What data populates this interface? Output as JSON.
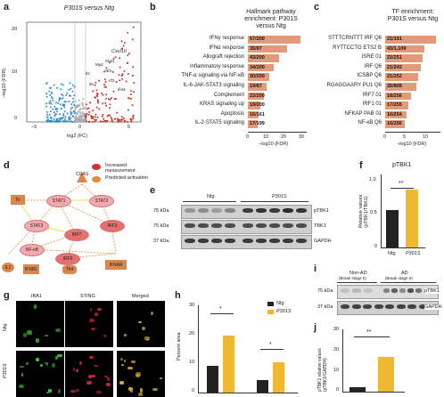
{
  "panels": {
    "a": {
      "letter": "a",
      "title": "P301S versus Ntg",
      "xlabel": "log2 (FC)",
      "ylabel": "−log10 (FDR)",
      "xticks": [
        "−5",
        "0",
        "5"
      ],
      "yticks": [
        "0",
        "10",
        "20"
      ],
      "gene_label": "Cxcl10",
      "small_labels": [
        "Il4",
        "Il6",
        "Myd",
        "Nf4",
        "Ifi44",
        "Stat1",
        "Irf1"
      ]
    },
    "b": {
      "letter": "b",
      "title": "Hallmark pathway enrichment: P301S versus Ntg",
      "xlabel": "−log10 (FDR)",
      "xticks": [
        "0",
        "10",
        "20",
        "30"
      ],
      "rows": [
        {
          "label": "IFNγ response",
          "value": "57/200",
          "score": 27
        },
        {
          "label": "IFNα response",
          "value": "35/97",
          "score": 20
        },
        {
          "label": "Allograft rejection",
          "value": "43/200",
          "score": 16
        },
        {
          "label": "Inflammatory response",
          "value": "34/200",
          "score": 13
        },
        {
          "label": "TNF-α signaling via NF-κB",
          "value": "30/200",
          "score": 11
        },
        {
          "label": "IL-6-JAK-STAT3 signaling",
          "value": "19/87",
          "score": 9.5
        },
        {
          "label": "Complement",
          "value": "22/200",
          "score": 8
        },
        {
          "label": "KRAS signaling up",
          "value": "19/200",
          "score": 6.5
        },
        {
          "label": "Apoptosis",
          "value": "16/161",
          "score": 5.5
        },
        {
          "label": "IL-2-STAT5 signaling",
          "value": "17/199",
          "score": 5
        }
      ]
    },
    "c": {
      "letter": "c",
      "title": "TF enrichment: P301S versus Ntg",
      "xlabel": "−log10 (FDR)",
      "xticks": [
        "0",
        "5",
        "10"
      ],
      "rows": [
        {
          "label": "STTTCRNTTT IRF Q6",
          "value": "21/191",
          "score": 13
        },
        {
          "label": "RYTTCCTG ETS2 B",
          "value": "43/1,109",
          "score": 10
        },
        {
          "label": "ISRE 01",
          "value": "22/251",
          "score": 9.5
        },
        {
          "label": "IRF Q6",
          "value": "21/243",
          "score": 9
        },
        {
          "label": "ICSBP Q6",
          "value": "21/252",
          "score": 8.5
        },
        {
          "label": "RGAGGAARY PU1 Q6",
          "value": "35/808",
          "score": 8
        },
        {
          "label": "IRF7 01",
          "value": "18/256",
          "score": 6.5
        },
        {
          "label": "IRF1 01",
          "value": "17/255",
          "score": 6
        },
        {
          "label": "NFKAP PAB 01",
          "value": "16/254",
          "score": 5.5
        },
        {
          "label": "NF-κB Q6",
          "value": "16/256",
          "score": 5
        }
      ]
    },
    "d": {
      "letter": "d",
      "legend_increased": "Increased measurement",
      "legend_predicted": "Predicted activation",
      "nodes": [
        "CGAS",
        "STAT1",
        "STAT2",
        "STAT3",
        "IRF3",
        "IRF7",
        "NF-κB",
        "IRF9",
        "Tlr",
        "IL1",
        "IFNB1",
        "IFNAR",
        "Tlr4"
      ]
    },
    "e": {
      "letter": "e",
      "groups": [
        "Ntg",
        "P301S"
      ],
      "mw": [
        "75 kDa",
        "75 kDa",
        "37 kDa"
      ],
      "proteins": [
        "pTBK1",
        "TBK1",
        "GAPDH"
      ]
    },
    "f": {
      "letter": "f",
      "title": "pTBK1",
      "ylabel": "Relative values (pTBK1/TBK1)",
      "yticks": [
        "0",
        "0.5",
        "1.0"
      ],
      "groups": [
        "Ntg",
        "P301S"
      ],
      "sig": "**",
      "values": [
        0.55,
        0.85
      ]
    },
    "g": {
      "letter": "g",
      "cols": [
        "IBA1",
        "STING",
        "Merged"
      ],
      "rows": [
        "Ntg",
        "P301S"
      ]
    },
    "h": {
      "letter": "h",
      "ylabel": "Percent area",
      "yticks": [
        "0",
        "10",
        "20",
        "30"
      ],
      "legend": [
        "Ntg",
        "P301S"
      ],
      "sig": [
        "*",
        "*"
      ],
      "series": [
        {
          "name": "Ntg",
          "values": [
            9.5,
            4.5
          ]
        },
        {
          "name": "P301S",
          "values": [
            20,
            10.5
          ]
        }
      ]
    },
    "i": {
      "letter": "i",
      "groups": [
        "Non-AD",
        "AD"
      ],
      "stages": [
        "(Braak stage 0)",
        "(Braak stage 6)"
      ],
      "mw": [
        "75 kDa",
        "37 kDa"
      ],
      "proteins": [
        "pTBK1",
        "GAPDH"
      ]
    },
    "j": {
      "letter": "j",
      "ylabel": "pTBK1 relative values (pTBK1/GAPDH)",
      "yticks": [
        "0",
        "10",
        "20",
        "30"
      ],
      "sig": "**",
      "values": [
        2,
        17
      ]
    }
  },
  "colors": {
    "bar": "#e39a78",
    "ntg": "#222222",
    "p301s": "#f0b733",
    "up": "#d0312d",
    "down": "#2f8fd0"
  }
}
